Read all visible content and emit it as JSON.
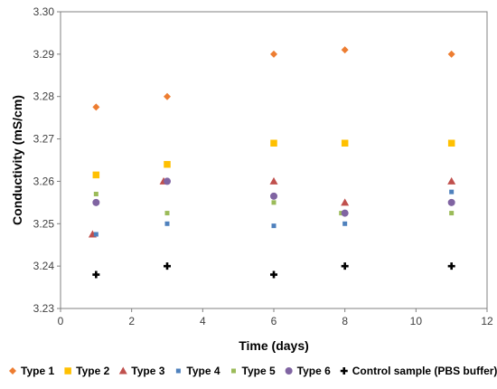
{
  "chart_data": {
    "type": "scatter",
    "title": "",
    "xlabel": "Time (days)",
    "ylabel": "Conductivity (mS/cm)",
    "xlim": [
      0,
      12
    ],
    "ylim": [
      3.23,
      3.3
    ],
    "xticks": [
      0,
      2,
      4,
      6,
      8,
      10,
      12
    ],
    "yticks": [
      3.23,
      3.24,
      3.25,
      3.26,
      3.27,
      3.28,
      3.29,
      3.3
    ],
    "grid": false,
    "legend_position": "bottom",
    "series": [
      {
        "name": "Type 1",
        "color": "#ED7D31",
        "marker": "diamond",
        "x": [
          1,
          3,
          6,
          8,
          11
        ],
        "y": [
          3.2775,
          3.28,
          3.29,
          3.291,
          3.29
        ]
      },
      {
        "name": "Type 2",
        "color": "#FFC000",
        "marker": "square",
        "x": [
          1,
          3,
          6,
          8,
          11
        ],
        "y": [
          3.2615,
          3.264,
          3.269,
          3.269,
          3.269
        ]
      },
      {
        "name": "Type 3",
        "color": "#C0504D",
        "marker": "triangle",
        "x": [
          0.9,
          2.9,
          6,
          8,
          11
        ],
        "y": [
          3.2475,
          3.26,
          3.26,
          3.255,
          3.26
        ]
      },
      {
        "name": "Type 4",
        "color": "#4F81BD",
        "marker": "small-square",
        "x": [
          1,
          3,
          6,
          8,
          11
        ],
        "y": [
          3.2475,
          3.25,
          3.2495,
          3.25,
          3.2575
        ]
      },
      {
        "name": "Type 5",
        "color": "#9BBB59",
        "marker": "small-square",
        "x": [
          1,
          3,
          6,
          7.9,
          11
        ],
        "y": [
          3.257,
          3.2525,
          3.255,
          3.2525,
          3.2525
        ]
      },
      {
        "name": "Type 6",
        "color": "#8064A2",
        "marker": "circle",
        "x": [
          1,
          3,
          6,
          8,
          11
        ],
        "y": [
          3.255,
          3.26,
          3.2565,
          3.2525,
          3.255
        ]
      },
      {
        "name": "Control sample (PBS buffer)",
        "color": "#000000",
        "marker": "cross",
        "x": [
          1,
          3,
          6,
          8,
          11
        ],
        "y": [
          3.238,
          3.24,
          3.238,
          3.24,
          3.24
        ]
      }
    ]
  }
}
